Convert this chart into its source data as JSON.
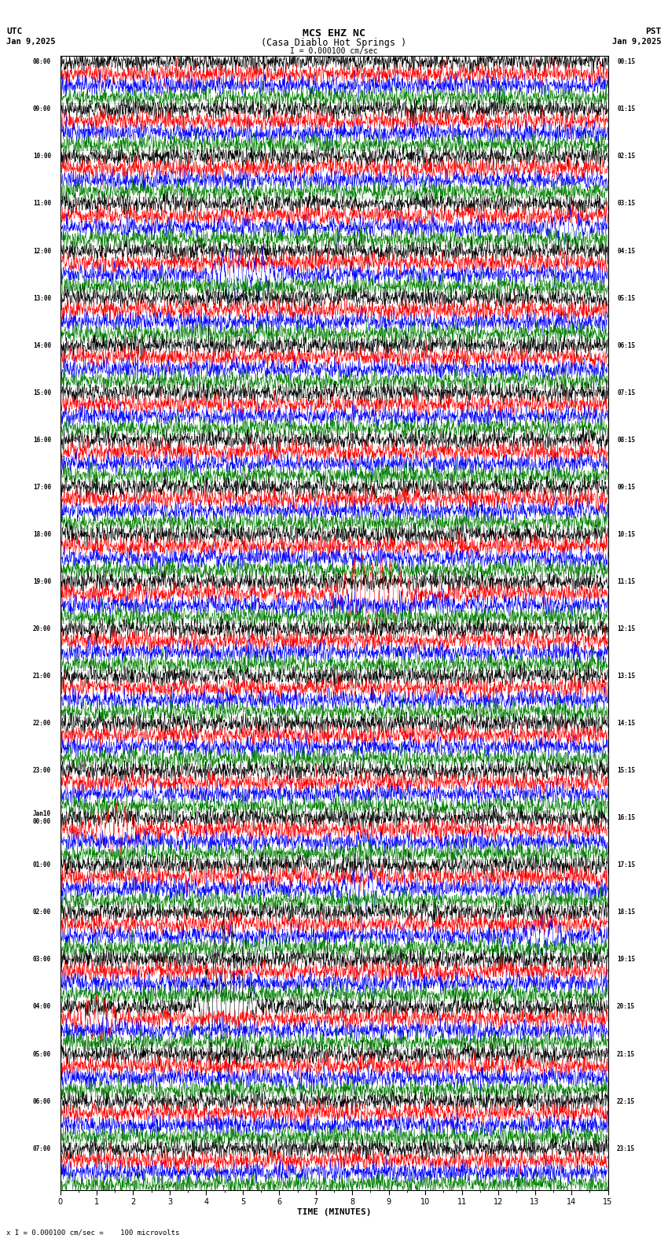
{
  "title_line1": "MCS EHZ NC",
  "title_line2": "(Casa Diablo Hot Springs )",
  "scale_label": "I = 0.000100 cm/sec",
  "utc_label": "UTC",
  "pst_label": "PST",
  "date_left": "Jan 9,2025",
  "date_right": "Jan 9,2025",
  "bottom_label": "x I = 0.000100 cm/sec =    100 microvolts",
  "xlabel": "TIME (MINUTES)",
  "hour_labels_left": [
    "08:00",
    "09:00",
    "10:00",
    "11:00",
    "12:00",
    "13:00",
    "14:00",
    "15:00",
    "16:00",
    "17:00",
    "18:00",
    "19:00",
    "20:00",
    "21:00",
    "22:00",
    "23:00",
    "Jan10\n00:00",
    "01:00",
    "02:00",
    "03:00",
    "04:00",
    "05:00",
    "06:00",
    "07:00"
  ],
  "hour_labels_right": [
    "00:15",
    "01:15",
    "02:15",
    "03:15",
    "04:15",
    "05:15",
    "06:15",
    "07:15",
    "08:15",
    "09:15",
    "10:15",
    "11:15",
    "12:15",
    "13:15",
    "14:15",
    "15:15",
    "16:15",
    "17:15",
    "18:15",
    "19:15",
    "20:15",
    "21:15",
    "22:15",
    "23:15"
  ],
  "colors": [
    "black",
    "red",
    "blue",
    "green"
  ],
  "fig_width": 8.5,
  "fig_height": 15.84,
  "bg_color": "#ffffff",
  "num_hours": 24,
  "minutes": 15,
  "seed": 42
}
